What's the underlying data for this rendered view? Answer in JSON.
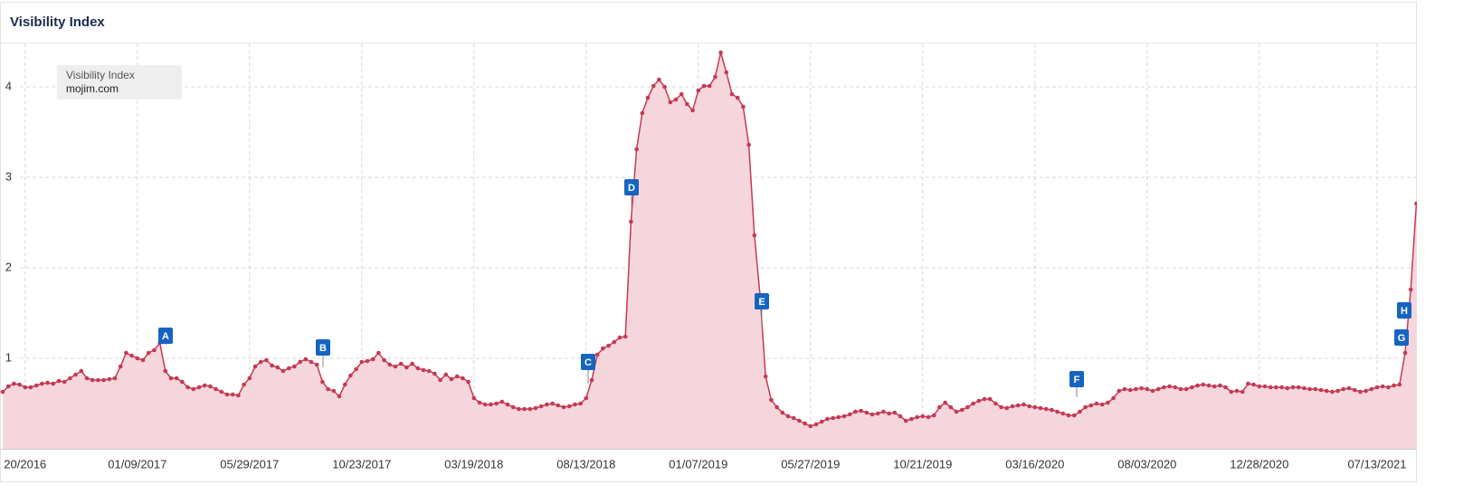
{
  "chart_data": {
    "type": "area",
    "title": "Visibility Index",
    "legend_title": "Visibility Index",
    "categories": [
      null,
      null,
      null,
      null,
      "20/2016",
      null,
      null,
      null,
      null,
      null,
      null,
      null,
      null,
      null,
      null,
      null,
      null,
      null,
      null,
      null,
      null,
      null,
      null,
      null,
      "01/09/2017",
      null,
      null,
      null,
      null,
      null,
      null,
      null,
      null,
      null,
      null,
      null,
      null,
      null,
      null,
      null,
      null,
      null,
      null,
      null,
      "05/29/2017",
      null,
      null,
      null,
      null,
      null,
      null,
      null,
      null,
      null,
      null,
      null,
      null,
      null,
      null,
      null,
      null,
      null,
      null,
      null,
      "10/23/2017",
      null,
      null,
      null,
      null,
      null,
      null,
      null,
      null,
      null,
      null,
      null,
      null,
      null,
      null,
      null,
      null,
      null,
      null,
      null,
      "03/19/2018",
      null,
      null,
      null,
      null,
      null,
      null,
      null,
      null,
      null,
      null,
      null,
      null,
      null,
      null,
      null,
      null,
      null,
      null,
      null,
      "08/13/2018",
      null,
      null,
      null,
      null,
      null,
      null,
      null,
      null,
      null,
      null,
      null,
      null,
      null,
      null,
      null,
      null,
      null,
      null,
      null,
      "01/07/2019",
      null,
      null,
      null,
      null,
      null,
      null,
      null,
      null,
      null,
      null,
      null,
      null,
      null,
      null,
      null,
      null,
      null,
      null,
      null,
      "05/27/2019",
      null,
      null,
      null,
      null,
      null,
      null,
      null,
      null,
      null,
      null,
      null,
      null,
      null,
      null,
      null,
      null,
      null,
      null,
      null,
      "10/21/2019",
      null,
      null,
      null,
      null,
      null,
      null,
      null,
      null,
      null,
      null,
      null,
      null,
      null,
      null,
      null,
      null,
      null,
      null,
      null,
      "03/16/2020",
      null,
      null,
      null,
      null,
      null,
      null,
      null,
      null,
      null,
      null,
      null,
      null,
      null,
      null,
      null,
      null,
      null,
      null,
      null,
      "08/03/2020",
      null,
      null,
      null,
      null,
      null,
      null,
      null,
      null,
      null,
      null,
      null,
      null,
      null,
      null,
      null,
      null,
      null,
      null,
      null,
      "12/28/2020",
      null,
      null,
      null,
      null,
      null,
      null,
      null,
      null,
      null,
      null,
      null,
      null,
      null,
      null,
      null,
      null,
      null,
      null,
      null,
      null,
      "07/13/2021",
      null,
      null,
      null,
      null,
      null,
      null,
      null
    ],
    "series": [
      {
        "name": "mojim.com",
        "color": "#c43a52",
        "fill": "#f6d6dd",
        "values": [
          0.63,
          0.69,
          0.72,
          0.71,
          0.68,
          0.68,
          0.7,
          0.72,
          0.73,
          0.72,
          0.75,
          0.74,
          0.78,
          0.82,
          0.86,
          0.78,
          0.76,
          0.76,
          0.76,
          0.77,
          0.78,
          0.91,
          1.06,
          1.03,
          1.0,
          0.98,
          1.06,
          1.09,
          1.17,
          0.86,
          0.78,
          0.78,
          0.74,
          0.68,
          0.66,
          0.68,
          0.7,
          0.69,
          0.66,
          0.63,
          0.6,
          0.6,
          0.59,
          0.71,
          0.78,
          0.91,
          0.96,
          0.98,
          0.92,
          0.9,
          0.86,
          0.89,
          0.91,
          0.96,
          0.99,
          0.96,
          0.93,
          0.74,
          0.66,
          0.64,
          0.58,
          0.71,
          0.81,
          0.88,
          0.96,
          0.97,
          0.99,
          1.06,
          0.98,
          0.93,
          0.91,
          0.94,
          0.9,
          0.94,
          0.89,
          0.87,
          0.86,
          0.83,
          0.76,
          0.82,
          0.77,
          0.8,
          0.78,
          0.74,
          0.56,
          0.51,
          0.49,
          0.49,
          0.5,
          0.52,
          0.49,
          0.46,
          0.44,
          0.44,
          0.44,
          0.45,
          0.47,
          0.49,
          0.5,
          0.48,
          0.46,
          0.47,
          0.49,
          0.5,
          0.56,
          0.76,
          1.04,
          1.11,
          1.14,
          1.18,
          1.23,
          1.24,
          2.51,
          3.31,
          3.71,
          3.88,
          4.01,
          4.08,
          4.0,
          3.83,
          3.86,
          3.92,
          3.81,
          3.74,
          3.96,
          4.01,
          4.01,
          4.11,
          4.38,
          4.16,
          3.92,
          3.88,
          3.78,
          3.36,
          2.36,
          1.7,
          0.8,
          0.54,
          0.46,
          0.4,
          0.36,
          0.34,
          0.31,
          0.28,
          0.25,
          0.27,
          0.3,
          0.33,
          0.34,
          0.35,
          0.36,
          0.38,
          0.41,
          0.42,
          0.4,
          0.38,
          0.39,
          0.41,
          0.39,
          0.4,
          0.36,
          0.31,
          0.33,
          0.35,
          0.36,
          0.35,
          0.37,
          0.46,
          0.51,
          0.46,
          0.41,
          0.43,
          0.46,
          0.5,
          0.53,
          0.55,
          0.55,
          0.5,
          0.46,
          0.45,
          0.47,
          0.48,
          0.49,
          0.47,
          0.46,
          0.45,
          0.44,
          0.43,
          0.41,
          0.39,
          0.37,
          0.37,
          0.41,
          0.46,
          0.48,
          0.5,
          0.49,
          0.51,
          0.56,
          0.64,
          0.66,
          0.65,
          0.66,
          0.67,
          0.66,
          0.64,
          0.66,
          0.68,
          0.69,
          0.68,
          0.66,
          0.66,
          0.68,
          0.7,
          0.71,
          0.7,
          0.69,
          0.7,
          0.68,
          0.63,
          0.64,
          0.63,
          0.72,
          0.71,
          0.69,
          0.69,
          0.68,
          0.68,
          0.68,
          0.67,
          0.68,
          0.68,
          0.67,
          0.66,
          0.66,
          0.65,
          0.64,
          0.63,
          0.64,
          0.66,
          0.67,
          0.65,
          0.63,
          0.64,
          0.66,
          0.68,
          0.69,
          0.68,
          0.7,
          0.71,
          1.06,
          1.76,
          2.71
        ]
      }
    ],
    "ylim": [
      0,
      4.5
    ],
    "yticks": [
      1,
      2,
      3,
      4
    ],
    "grid": true,
    "annotations": [
      "A",
      "B",
      "C",
      "D",
      "E",
      "F",
      "G",
      "H"
    ],
    "annotation_color": "#1565c0"
  }
}
